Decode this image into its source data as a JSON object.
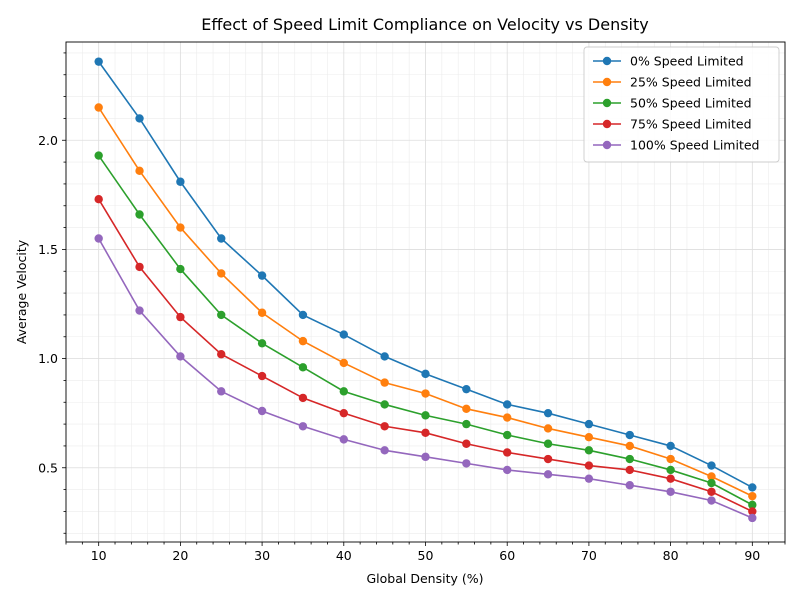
{
  "chart_data": {
    "type": "line",
    "title": "Effect of Speed Limit Compliance on Velocity vs Density",
    "xlabel": "Global Density (%)",
    "ylabel": "Average Velocity",
    "xlim": [
      6,
      94
    ],
    "ylim": [
      0.16,
      2.45
    ],
    "x_ticks": [
      10,
      20,
      30,
      40,
      50,
      60,
      70,
      80,
      90
    ],
    "y_ticks": [
      0.5,
      1.0,
      1.5,
      2.0
    ],
    "x_tick_labels": [
      "10",
      "20",
      "30",
      "40",
      "50",
      "60",
      "70",
      "80",
      "90"
    ],
    "y_tick_labels": [
      "0.5",
      "1.0",
      "1.5",
      "2.0"
    ],
    "grid": true,
    "minor_grid": true,
    "legend_position": "top-right",
    "x": [
      10,
      15,
      20,
      25,
      30,
      35,
      40,
      45,
      50,
      55,
      60,
      65,
      70,
      75,
      80,
      85,
      90
    ],
    "series": [
      {
        "name": "0% Speed Limited",
        "color": "#1f77b4",
        "values": [
          2.36,
          2.1,
          1.81,
          1.55,
          1.38,
          1.2,
          1.11,
          1.01,
          0.93,
          0.86,
          0.79,
          0.75,
          0.7,
          0.65,
          0.6,
          0.51,
          0.41
        ]
      },
      {
        "name": "25% Speed Limited",
        "color": "#ff7f0e",
        "values": [
          2.15,
          1.86,
          1.6,
          1.39,
          1.21,
          1.08,
          0.98,
          0.89,
          0.84,
          0.77,
          0.73,
          0.68,
          0.64,
          0.6,
          0.54,
          0.46,
          0.37
        ]
      },
      {
        "name": "50% Speed Limited",
        "color": "#2ca02c",
        "values": [
          1.93,
          1.66,
          1.41,
          1.2,
          1.07,
          0.96,
          0.85,
          0.79,
          0.74,
          0.7,
          0.65,
          0.61,
          0.58,
          0.54,
          0.49,
          0.43,
          0.33
        ]
      },
      {
        "name": "75% Speed Limited",
        "color": "#d62728",
        "values": [
          1.73,
          1.42,
          1.19,
          1.02,
          0.92,
          0.82,
          0.75,
          0.69,
          0.66,
          0.61,
          0.57,
          0.54,
          0.51,
          0.49,
          0.45,
          0.39,
          0.3
        ]
      },
      {
        "name": "100% Speed Limited",
        "color": "#9467bd",
        "values": [
          1.55,
          1.22,
          1.01,
          0.85,
          0.76,
          0.69,
          0.63,
          0.58,
          0.55,
          0.52,
          0.49,
          0.47,
          0.45,
          0.42,
          0.39,
          0.35,
          0.27
        ]
      }
    ]
  }
}
